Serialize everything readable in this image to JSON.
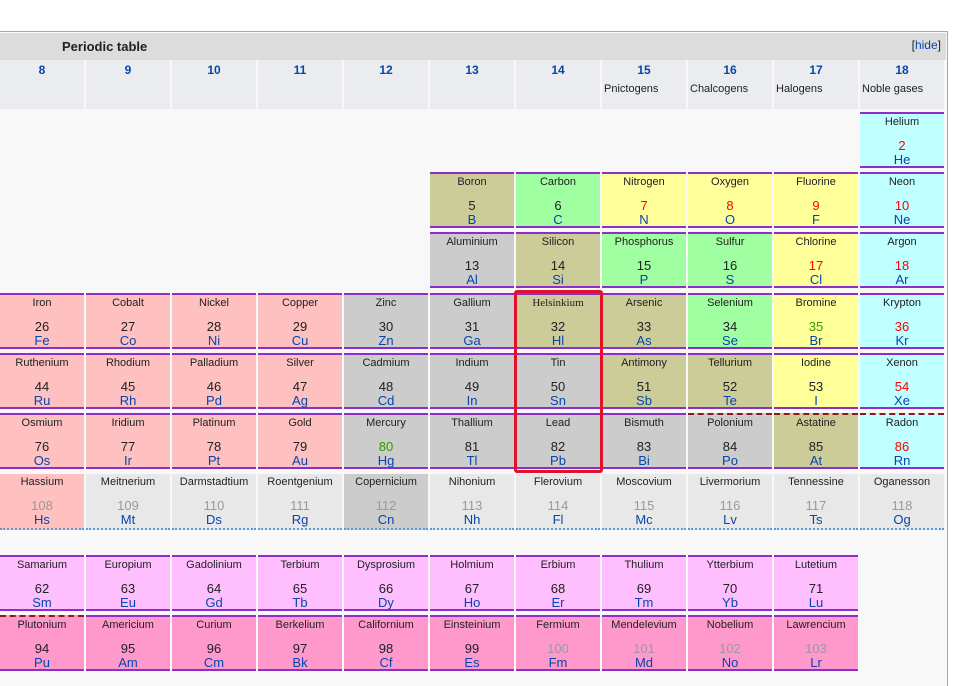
{
  "table": {
    "title": "Periodic table",
    "hide_label": "hide",
    "hide_bracket_open": "[",
    "hide_bracket_close": "]"
  },
  "groups": [
    {
      "num": "8",
      "label": ""
    },
    {
      "num": "9",
      "label": ""
    },
    {
      "num": "10",
      "label": ""
    },
    {
      "num": "11",
      "label": ""
    },
    {
      "num": "12",
      "label": ""
    },
    {
      "num": "13",
      "label": ""
    },
    {
      "num": "14",
      "label": ""
    },
    {
      "num": "15",
      "label": "Pnictogens"
    },
    {
      "num": "16",
      "label": "Chalcogens"
    },
    {
      "num": "17",
      "label": "Halogens"
    },
    {
      "num": "18",
      "label": "Noble gases"
    }
  ],
  "colors": {
    "transition": "#ffc0c0",
    "post_transition": "#cccccc",
    "metalloid": "#cccc99",
    "nonmetal": "#a0ffa0",
    "reactive_nonmetal": "#ffff99",
    "noble_gas": "#c0ffff",
    "unknown": "#e8e8e8",
    "lanthanide": "#ffbfff",
    "actinide": "#ff99cc",
    "number_red": "#ff0000",
    "number_green": "#339900",
    "number_gray": "#999999",
    "highlight": "#e0122c"
  },
  "elements": [
    {
      "name": "Helium",
      "z": "2",
      "sym": "He",
      "cat": "noble_gas",
      "zc": "red"
    },
    {
      "name": "Boron",
      "z": "5",
      "sym": "B",
      "cat": "metalloid"
    },
    {
      "name": "Carbon",
      "z": "6",
      "sym": "C",
      "cat": "nonmetal"
    },
    {
      "name": "Nitrogen",
      "z": "7",
      "sym": "N",
      "cat": "reactive_nonmetal",
      "zc": "red"
    },
    {
      "name": "Oxygen",
      "z": "8",
      "sym": "O",
      "cat": "reactive_nonmetal",
      "zc": "red"
    },
    {
      "name": "Fluorine",
      "z": "9",
      "sym": "F",
      "cat": "reactive_nonmetal",
      "zc": "red"
    },
    {
      "name": "Neon",
      "z": "10",
      "sym": "Ne",
      "cat": "noble_gas",
      "zc": "red"
    },
    {
      "name": "Aluminium",
      "z": "13",
      "sym": "Al",
      "cat": "post_transition"
    },
    {
      "name": "Silicon",
      "z": "14",
      "sym": "Si",
      "cat": "metalloid"
    },
    {
      "name": "Phosphorus",
      "z": "15",
      "sym": "P",
      "cat": "nonmetal"
    },
    {
      "name": "Sulfur",
      "z": "16",
      "sym": "S",
      "cat": "nonmetal"
    },
    {
      "name": "Chlorine",
      "z": "17",
      "sym": "Cl",
      "cat": "reactive_nonmetal",
      "zc": "red"
    },
    {
      "name": "Argon",
      "z": "18",
      "sym": "Ar",
      "cat": "noble_gas",
      "zc": "red"
    },
    {
      "name": "Iron",
      "z": "26",
      "sym": "Fe",
      "cat": "transition"
    },
    {
      "name": "Cobalt",
      "z": "27",
      "sym": "Co",
      "cat": "transition"
    },
    {
      "name": "Nickel",
      "z": "28",
      "sym": "Ni",
      "cat": "transition"
    },
    {
      "name": "Copper",
      "z": "29",
      "sym": "Cu",
      "cat": "transition"
    },
    {
      "name": "Zinc",
      "z": "30",
      "sym": "Zn",
      "cat": "post_transition"
    },
    {
      "name": "Gallium",
      "z": "31",
      "sym": "Ga",
      "cat": "post_transition"
    },
    {
      "name": "Helsinkium",
      "z": "32",
      "sym": "Hl",
      "cat": "metalloid",
      "serif": true
    },
    {
      "name": "Arsenic",
      "z": "33",
      "sym": "As",
      "cat": "metalloid"
    },
    {
      "name": "Selenium",
      "z": "34",
      "sym": "Se",
      "cat": "nonmetal"
    },
    {
      "name": "Bromine",
      "z": "35",
      "sym": "Br",
      "cat": "reactive_nonmetal",
      "zc": "green"
    },
    {
      "name": "Krypton",
      "z": "36",
      "sym": "Kr",
      "cat": "noble_gas",
      "zc": "red"
    },
    {
      "name": "Ruthenium",
      "z": "44",
      "sym": "Ru",
      "cat": "transition"
    },
    {
      "name": "Rhodium",
      "z": "45",
      "sym": "Rh",
      "cat": "transition"
    },
    {
      "name": "Palladium",
      "z": "46",
      "sym": "Pd",
      "cat": "transition"
    },
    {
      "name": "Silver",
      "z": "47",
      "sym": "Ag",
      "cat": "transition"
    },
    {
      "name": "Cadmium",
      "z": "48",
      "sym": "Cd",
      "cat": "post_transition"
    },
    {
      "name": "Indium",
      "z": "49",
      "sym": "In",
      "cat": "post_transition"
    },
    {
      "name": "Tin",
      "z": "50",
      "sym": "Sn",
      "cat": "post_transition"
    },
    {
      "name": "Antimony",
      "z": "51",
      "sym": "Sb",
      "cat": "metalloid"
    },
    {
      "name": "Tellurium",
      "z": "52",
      "sym": "Te",
      "cat": "metalloid"
    },
    {
      "name": "Iodine",
      "z": "53",
      "sym": "I",
      "cat": "reactive_nonmetal"
    },
    {
      "name": "Xenon",
      "z": "54",
      "sym": "Xe",
      "cat": "noble_gas",
      "zc": "red"
    },
    {
      "name": "Osmium",
      "z": "76",
      "sym": "Os",
      "cat": "transition"
    },
    {
      "name": "Iridium",
      "z": "77",
      "sym": "Ir",
      "cat": "transition"
    },
    {
      "name": "Platinum",
      "z": "78",
      "sym": "Pt",
      "cat": "transition"
    },
    {
      "name": "Gold",
      "z": "79",
      "sym": "Au",
      "cat": "transition"
    },
    {
      "name": "Mercury",
      "z": "80",
      "sym": "Hg",
      "cat": "post_transition",
      "zc": "green"
    },
    {
      "name": "Thallium",
      "z": "81",
      "sym": "Tl",
      "cat": "post_transition"
    },
    {
      "name": "Lead",
      "z": "82",
      "sym": "Pb",
      "cat": "post_transition"
    },
    {
      "name": "Bismuth",
      "z": "83",
      "sym": "Bi",
      "cat": "post_transition"
    },
    {
      "name": "Polonium",
      "z": "84",
      "sym": "Po",
      "cat": "post_transition",
      "border": "dash"
    },
    {
      "name": "Astatine",
      "z": "85",
      "sym": "At",
      "cat": "metalloid",
      "border": "dash"
    },
    {
      "name": "Radon",
      "z": "86",
      "sym": "Rn",
      "cat": "noble_gas",
      "zc": "red",
      "border": "dash"
    },
    {
      "name": "Hassium",
      "z": "108",
      "sym": "Hs",
      "cat": "transition",
      "zc": "gray",
      "border": "plain"
    },
    {
      "name": "Meitnerium",
      "z": "109",
      "sym": "Mt",
      "cat": "unknown",
      "zc": "gray",
      "border": "plain"
    },
    {
      "name": "Darmstadtium",
      "z": "110",
      "sym": "Ds",
      "cat": "unknown",
      "zc": "gray",
      "border": "plain"
    },
    {
      "name": "Roentgenium",
      "z": "111",
      "sym": "Rg",
      "cat": "unknown",
      "zc": "gray",
      "border": "plain"
    },
    {
      "name": "Copernicium",
      "z": "112",
      "sym": "Cn",
      "cat": "post_transition",
      "zc": "gray",
      "border": "plain"
    },
    {
      "name": "Nihonium",
      "z": "113",
      "sym": "Nh",
      "cat": "unknown",
      "zc": "gray",
      "border": "plain"
    },
    {
      "name": "Flerovium",
      "z": "114",
      "sym": "Fl",
      "cat": "unknown",
      "zc": "gray",
      "border": "plain"
    },
    {
      "name": "Moscovium",
      "z": "115",
      "sym": "Mc",
      "cat": "unknown",
      "zc": "gray",
      "border": "plain"
    },
    {
      "name": "Livermorium",
      "z": "116",
      "sym": "Lv",
      "cat": "unknown",
      "zc": "gray",
      "border": "plain"
    },
    {
      "name": "Tennessine",
      "z": "117",
      "sym": "Ts",
      "cat": "unknown",
      "zc": "gray",
      "border": "plain"
    },
    {
      "name": "Oganesson",
      "z": "118",
      "sym": "Og",
      "cat": "unknown",
      "zc": "gray",
      "border": "plain"
    },
    {
      "name": "Samarium",
      "z": "62",
      "sym": "Sm",
      "cat": "lanthanide"
    },
    {
      "name": "Europium",
      "z": "63",
      "sym": "Eu",
      "cat": "lanthanide"
    },
    {
      "name": "Gadolinium",
      "z": "64",
      "sym": "Gd",
      "cat": "lanthanide"
    },
    {
      "name": "Terbium",
      "z": "65",
      "sym": "Tb",
      "cat": "lanthanide"
    },
    {
      "name": "Dysprosium",
      "z": "66",
      "sym": "Dy",
      "cat": "lanthanide"
    },
    {
      "name": "Holmium",
      "z": "67",
      "sym": "Ho",
      "cat": "lanthanide"
    },
    {
      "name": "Erbium",
      "z": "68",
      "sym": "Er",
      "cat": "lanthanide"
    },
    {
      "name": "Thulium",
      "z": "69",
      "sym": "Tm",
      "cat": "lanthanide"
    },
    {
      "name": "Ytterbium",
      "z": "70",
      "sym": "Yb",
      "cat": "lanthanide"
    },
    {
      "name": "Lutetium",
      "z": "71",
      "sym": "Lu",
      "cat": "lanthanide"
    },
    {
      "name": "Plutonium",
      "z": "94",
      "sym": "Pu",
      "cat": "actinide",
      "border": "dash"
    },
    {
      "name": "Americium",
      "z": "95",
      "sym": "Am",
      "cat": "actinide"
    },
    {
      "name": "Curium",
      "z": "96",
      "sym": "Cm",
      "cat": "actinide"
    },
    {
      "name": "Berkelium",
      "z": "97",
      "sym": "Bk",
      "cat": "actinide"
    },
    {
      "name": "Californium",
      "z": "98",
      "sym": "Cf",
      "cat": "actinide"
    },
    {
      "name": "Einsteinium",
      "z": "99",
      "sym": "Es",
      "cat": "actinide"
    },
    {
      "name": "Fermium",
      "z": "100",
      "sym": "Fm",
      "cat": "actinide",
      "zc": "gray"
    },
    {
      "name": "Mendelevium",
      "z": "101",
      "sym": "Md",
      "cat": "actinide",
      "zc": "gray"
    },
    {
      "name": "Nobelium",
      "z": "102",
      "sym": "No",
      "cat": "actinide",
      "zc": "gray"
    },
    {
      "name": "Lawrencium",
      "z": "103",
      "sym": "Lr",
      "cat": "actinide",
      "zc": "gray"
    }
  ]
}
